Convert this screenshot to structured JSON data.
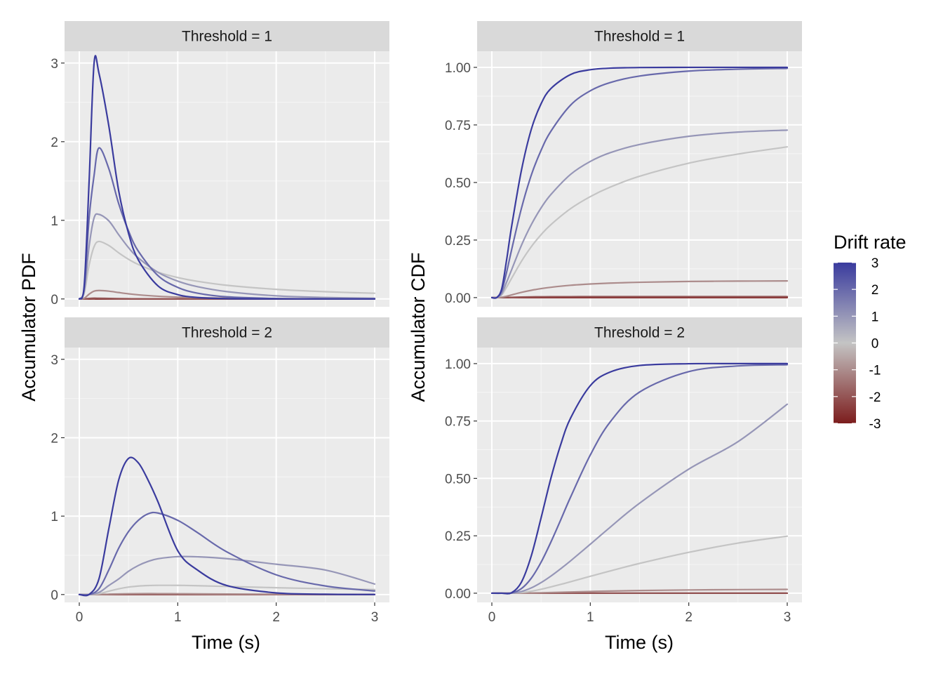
{
  "chart_data": {
    "type": "line",
    "facet_grid": "rows = threshold, columns = measure",
    "row_strips": [
      "Threshold = 1",
      "Threshold = 2"
    ],
    "x_label": "Time (s)",
    "x_ticks": [
      "0",
      "1",
      "2",
      "3"
    ],
    "x_range": [
      0,
      3
    ],
    "grid": true,
    "panels": [
      {
        "name": "pdf-threshold-1",
        "strip": "Threshold = 1",
        "ylabel": "Accumulator PDF",
        "ylim": [
          -0.1,
          3.15
        ],
        "y_ticks": [
          0,
          1,
          2,
          3
        ],
        "y_tick_labels": [
          "0",
          "1",
          "2",
          "3"
        ],
        "x": [
          0,
          0.05,
          0.1,
          0.15,
          0.2,
          0.3,
          0.4,
          0.5,
          0.6,
          0.8,
          1.0,
          1.2,
          1.5,
          2.0,
          2.5,
          3.0
        ],
        "series": [
          {
            "drift": -3,
            "values": [
              0,
              0.0001,
              0.0007,
              0.0008,
              0.0006,
              0.0003,
              0.0001,
              0,
              0,
              0,
              0,
              0,
              0,
              0,
              0,
              0
            ]
          },
          {
            "drift": -2,
            "values": [
              0,
              0.0009,
              0.0064,
              0.0091,
              0.0085,
              0.0061,
              0.004,
              0.0026,
              0.0017,
              0.0008,
              0.0004,
              0.0002,
              0.0001,
              0,
              0,
              0
            ]
          },
          {
            "drift": -1,
            "values": [
              0,
              0.0091,
              0.0613,
              0.099,
              0.1075,
              0.0993,
              0.0817,
              0.0653,
              0.0523,
              0.0343,
              0.023,
              0.0158,
              0.0093,
              0.0039,
              0.0018,
              0.0008
            ]
          },
          {
            "drift": 0,
            "values": [
              0,
              0.074,
              0.4313,
              0.6643,
              0.7307,
              0.6795,
              0.5867,
              0.5046,
              0.4375,
              0.3396,
              0.2724,
              0.2243,
              0.1736,
              0.1221,
              0.0919,
              0.0722
            ]
          },
          {
            "drift": 1,
            "values": [
              0,
              0.0999,
              0.6713,
              1.0296,
              1.0751,
              0.9932,
              0.8175,
              0.6525,
              0.5214,
              0.3382,
              0.2264,
              0.1562,
              0.0932,
              0.0396,
              0.0185,
              0.009
            ]
          },
          {
            "drift": 2,
            "values": [
              0,
              0.1363,
              1.0302,
              1.5684,
              1.9208,
              1.6562,
              1.2132,
              0.8651,
              0.6062,
              0.296,
              0.1468,
              0.0738,
              0.027,
              0.0053,
              0.0011,
              0.0002
            ]
          },
          {
            "drift": 3,
            "values": [
              0,
              0.172,
              1.502,
              2.9949,
              2.87,
              2.2,
              1.376,
              0.835,
              0.495,
              0.165,
              0.055,
              0.0186,
              0.0037,
              0.0003,
              0,
              0
            ]
          }
        ]
      },
      {
        "name": "cdf-threshold-1",
        "strip": "Threshold = 1",
        "ylabel": "Accumulator CDF",
        "ylim": [
          -0.04,
          1.07
        ],
        "y_ticks": [
          0,
          0.25,
          0.5,
          0.75,
          1.0
        ],
        "y_tick_labels": [
          "0.00",
          "0.25",
          "0.50",
          "0.75",
          "1.00"
        ],
        "x": [
          0,
          0.05,
          0.1,
          0.15,
          0.2,
          0.3,
          0.4,
          0.5,
          0.6,
          0.8,
          1.0,
          1.2,
          1.5,
          2.0,
          2.5,
          3.0
        ],
        "series": [
          {
            "drift": -3,
            "values": [
              0,
              0,
              0,
              0.0001,
              0.0002,
              0.0003,
              0.0003,
              0.0003,
              0.0003,
              0.0003,
              0.0003,
              0.0003,
              0.0003,
              0.0003,
              0.0003,
              0.0003
            ]
          },
          {
            "drift": -2,
            "values": [
              0,
              0,
              0.0002,
              0.0007,
              0.0012,
              0.0025,
              0.0032,
              0.0036,
              0.0039,
              0.0041,
              0.0042,
              0.0042,
              0.0043,
              0.0043,
              0.0043,
              0.0043
            ]
          },
          {
            "drift": -1,
            "values": [
              0,
              0.0001,
              0.0015,
              0.006,
              0.0117,
              0.0227,
              0.0317,
              0.039,
              0.0448,
              0.0535,
              0.0591,
              0.0629,
              0.0666,
              0.0701,
              0.0716,
              0.0724
            ]
          },
          {
            "drift": 0,
            "values": [
              0,
              0.0002,
              0.0114,
              0.0455,
              0.0833,
              0.1573,
              0.2207,
              0.2733,
              0.3171,
              0.3865,
              0.4386,
              0.4795,
              0.5271,
              0.5839,
              0.6235,
              0.6547
            ]
          },
          {
            "drift": 1,
            "values": [
              0,
              0.0003,
              0.017,
              0.0672,
              0.1201,
              0.2268,
              0.3164,
              0.3895,
              0.4479,
              0.5353,
              0.5914,
              0.6291,
              0.6651,
              0.7006,
              0.7189,
              0.7274
            ]
          },
          {
            "drift": 2,
            "values": [
              0,
              0.0004,
              0.0284,
              0.1107,
              0.2064,
              0.387,
              0.5312,
              0.6399,
              0.7228,
              0.8362,
              0.8983,
              0.9338,
              0.9623,
              0.9838,
              0.992,
              0.9957
            ]
          },
          {
            "drift": 3,
            "values": [
              0,
              0.0004,
              0.038,
              0.164,
              0.307,
              0.552,
              0.73,
              0.842,
              0.908,
              0.969,
              0.9897,
              0.9966,
              0.9993,
              1.0,
              1.0,
              1.0
            ]
          }
        ]
      },
      {
        "name": "pdf-threshold-2",
        "strip": "Threshold = 2",
        "ylabel": "Accumulator PDF",
        "ylim": [
          -0.1,
          3.15
        ],
        "y_ticks": [
          0,
          1,
          2,
          3
        ],
        "y_tick_labels": [
          "0",
          "1",
          "2",
          "3"
        ],
        "x": [
          0,
          0.1,
          0.2,
          0.3,
          0.4,
          0.5,
          0.6,
          0.7,
          0.8,
          1.0,
          1.2,
          1.5,
          2.0,
          2.5,
          3.0
        ],
        "series": [
          {
            "drift": -3,
            "values": [
              0,
              0,
              0,
              0,
              0,
              0,
              0,
              0,
              0,
              0,
              0,
              0,
              0,
              0,
              0
            ]
          },
          {
            "drift": -2,
            "values": [
              0,
              0,
              0.0001,
              0.0003,
              0.0004,
              0.0004,
              0.0004,
              0.0004,
              0.0003,
              0.0002,
              0.0001,
              0.0001,
              0,
              0,
              0
            ]
          },
          {
            "drift": -1,
            "values": [
              0,
              0,
              0.0012,
              0.0048,
              0.0081,
              0.0104,
              0.0115,
              0.0117,
              0.0114,
              0.01,
              0.0084,
              0.0063,
              0.0038,
              0.0023,
              0.0014
            ]
          },
          {
            "drift": 0,
            "values": [
              0,
              0,
              0.01,
              0.0424,
              0.0731,
              0.0955,
              0.1083,
              0.1151,
              0.1176,
              0.1174,
              0.1129,
              0.1033,
              0.0872,
              0.0742,
              0.064
            ]
          },
          {
            "drift": 1,
            "values": [
              0,
              0,
              0.0271,
              0.1154,
              0.1987,
              0.2967,
              0.3706,
              0.423,
              0.4568,
              0.4838,
              0.4813,
              0.4571,
              0.3866,
              0.3123,
              0.134
            ]
          },
          {
            "drift": 2,
            "values": [
              0,
              0.0007,
              0.0737,
              0.3137,
              0.5905,
              0.8028,
              0.9468,
              1.03,
              1.0394,
              0.9465,
              0.7903,
              0.5432,
              0.2513,
              0.1092,
              0.0454
            ]
          },
          {
            "drift": 3,
            "values": [
              0,
              0.002,
              0.2,
              0.84,
              1.46,
              1.736,
              1.679,
              1.456,
              1.18,
              0.559,
              0.313,
              0.114,
              0.021,
              0.0038,
              0.0006
            ]
          }
        ]
      },
      {
        "name": "cdf-threshold-2",
        "strip": "Threshold = 2",
        "ylabel": "Accumulator CDF",
        "ylim": [
          -0.04,
          1.07
        ],
        "y_ticks": [
          0,
          0.25,
          0.5,
          0.75,
          1.0
        ],
        "y_tick_labels": [
          "0.00",
          "0.25",
          "0.50",
          "0.75",
          "1.00"
        ],
        "x": [
          0,
          0.1,
          0.2,
          0.3,
          0.4,
          0.5,
          0.6,
          0.7,
          0.8,
          1.0,
          1.2,
          1.5,
          2.0,
          2.5,
          3.0
        ],
        "series": [
          {
            "drift": -3,
            "values": [
              0,
              0,
              0,
              0,
              0,
              0,
              0,
              0,
              0,
              0,
              0,
              0,
              0,
              0,
              0
            ]
          },
          {
            "drift": -2,
            "values": [
              0,
              0,
              0,
              0,
              0,
              0.0001,
              0.0001,
              0.0001,
              0.0002,
              0.0002,
              0.0002,
              0.0002,
              0.0003,
              0.0003,
              0.0003
            ]
          },
          {
            "drift": -1,
            "values": [
              0,
              0,
              0,
              0.0003,
              0.001,
              0.0019,
              0.003,
              0.0042,
              0.0053,
              0.0075,
              0.0094,
              0.0116,
              0.0141,
              0.0156,
              0.0165
            ]
          },
          {
            "drift": 0,
            "values": [
              0,
              0,
              0.0001,
              0.0027,
              0.0085,
              0.0171,
              0.0273,
              0.0384,
              0.05,
              0.0736,
              0.0968,
              0.1297,
              0.178,
              0.2183,
              0.2484
            ]
          },
          {
            "drift": 1,
            "values": [
              0,
              0,
              0.0003,
              0.0073,
              0.0229,
              0.0461,
              0.0747,
              0.1068,
              0.1409,
              0.2134,
              0.2867,
              0.392,
              0.5405,
              0.66,
              0.823
            ]
          },
          {
            "drift": 2,
            "values": [
              0,
              0,
              0.001,
              0.02,
              0.065,
              0.135,
              0.223,
              0.32,
              0.419,
              0.602,
              0.745,
              0.876,
              0.965,
              0.99,
              0.995
            ]
          },
          {
            "drift": 3,
            "values": [
              0,
              0,
              0.002,
              0.048,
              0.162,
              0.328,
              0.501,
              0.648,
              0.763,
              0.904,
              0.963,
              0.9918,
              0.9995,
              1.0,
              1.0
            ]
          }
        ]
      }
    ],
    "legend": {
      "title": "Drift rate",
      "placement": "right",
      "type": "colorbar",
      "labels": [
        "3",
        "2",
        "1",
        "0",
        "-1",
        "-2",
        "-3"
      ],
      "values": [
        3,
        2,
        1,
        0,
        -1,
        -2,
        -3
      ],
      "high_color": "#3a3b9e",
      "mid_color": "#c4c4c4",
      "low_color": "#7c1d1d"
    },
    "colors": {
      "panel_background": "#ebebeb",
      "grid_major": "#ffffff",
      "strip_background": "#d9d9d9"
    }
  }
}
